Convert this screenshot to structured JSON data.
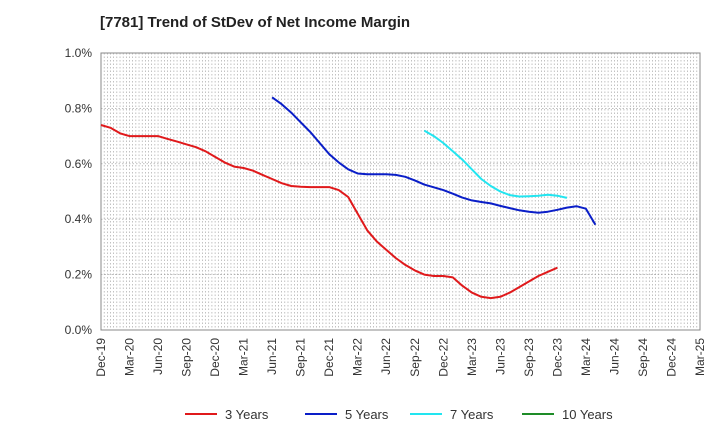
{
  "chart_data": {
    "type": "line",
    "title": "[7781]  Trend of StDev of Net Income Margin",
    "xlabel": "",
    "ylabel": "",
    "ylim": [
      0,
      1.0
    ],
    "y_ticks": [
      "0.0%",
      "0.2%",
      "0.4%",
      "0.6%",
      "0.8%",
      "1.0%"
    ],
    "x_ticks": [
      "Dec-19",
      "Mar-20",
      "Jun-20",
      "Sep-20",
      "Dec-20",
      "Mar-21",
      "Jun-21",
      "Sep-21",
      "Dec-21",
      "Mar-22",
      "Jun-22",
      "Sep-22",
      "Dec-22",
      "Mar-23",
      "Jun-23",
      "Sep-23",
      "Dec-23",
      "Mar-24",
      "Jun-24",
      "Sep-24",
      "Dec-24",
      "Mar-25"
    ],
    "grid": true,
    "legend_position": "bottom",
    "series": [
      {
        "name": "3 Years",
        "color": "#e0191b",
        "start_index": 0,
        "values": [
          0.74,
          0.73,
          0.71,
          0.7,
          0.7,
          0.7,
          0.7,
          0.69,
          0.68,
          0.67,
          0.66,
          0.645,
          0.625,
          0.605,
          0.59,
          0.585,
          0.575,
          0.56,
          0.545,
          0.53,
          0.52,
          0.517,
          0.516,
          0.516,
          0.516,
          0.505,
          0.48,
          0.42,
          0.36,
          0.32,
          0.29,
          0.26,
          0.235,
          0.215,
          0.2,
          0.195,
          0.195,
          0.19,
          0.16,
          0.135,
          0.12,
          0.115,
          0.12,
          0.135,
          0.155,
          0.175,
          0.195,
          0.21,
          0.225
        ]
      },
      {
        "name": "5 Years",
        "color": "#0a1ec8",
        "start_index": 18,
        "values": [
          0.84,
          0.815,
          0.785,
          0.75,
          0.715,
          0.675,
          0.635,
          0.605,
          0.58,
          0.565,
          0.562,
          0.562,
          0.562,
          0.56,
          0.553,
          0.54,
          0.525,
          0.515,
          0.505,
          0.492,
          0.478,
          0.468,
          0.462,
          0.457,
          0.448,
          0.44,
          0.432,
          0.427,
          0.423,
          0.427,
          0.434,
          0.442,
          0.447,
          0.438,
          0.38
        ]
      },
      {
        "name": "7 Years",
        "color": "#22e5f0",
        "start_index": 34,
        "values": [
          0.72,
          0.7,
          0.675,
          0.645,
          0.615,
          0.58,
          0.545,
          0.52,
          0.5,
          0.487,
          0.482,
          0.483,
          0.485,
          0.488,
          0.485,
          0.477
        ]
      },
      {
        "name": "10 Years",
        "color": "#1e8c28",
        "start_index": 0,
        "values": []
      }
    ]
  }
}
